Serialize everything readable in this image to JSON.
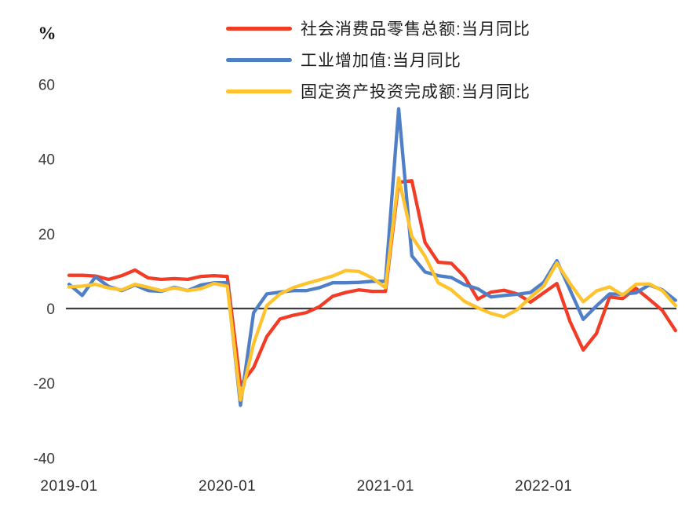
{
  "unit_label": "%",
  "chart_data": {
    "type": "line",
    "title": "",
    "xlabel": "",
    "ylabel": "%",
    "ylim": [
      -40,
      60
    ],
    "y_ticks": [
      60,
      40,
      20,
      0,
      -20,
      -40
    ],
    "x_axis_tick_labels": [
      "2019-01",
      "2020-01",
      "2021-01",
      "2022-01"
    ],
    "grid": "off",
    "legend_position": "top-center",
    "zero_line_color": "#3f3f3f",
    "x": [
      "2019-01",
      "2019-02",
      "2019-03",
      "2019-04",
      "2019-05",
      "2019-06",
      "2019-07",
      "2019-08",
      "2019-09",
      "2019-10",
      "2019-11",
      "2019-12",
      "2020-01",
      "2020-02",
      "2020-03",
      "2020-04",
      "2020-05",
      "2020-06",
      "2020-07",
      "2020-08",
      "2020-09",
      "2020-10",
      "2020-11",
      "2020-12",
      "2021-01",
      "2021-02",
      "2021-03",
      "2021-04",
      "2021-05",
      "2021-06",
      "2021-07",
      "2021-08",
      "2021-09",
      "2021-10",
      "2021-11",
      "2021-12",
      "2022-01",
      "2022-02",
      "2022-03",
      "2022-04",
      "2022-05",
      "2022-06",
      "2022-07",
      "2022-08",
      "2022-09",
      "2022-10",
      "2022-11"
    ],
    "series": [
      {
        "name": "社会消费品零售总额:当月同比",
        "color": "#F23C26",
        "values": [
          8.9,
          8.9,
          8.7,
          7.8,
          8.8,
          10.3,
          8.2,
          7.8,
          8.0,
          7.8,
          8.6,
          8.8,
          8.6,
          -20.5,
          -15.8,
          -7.5,
          -2.8,
          -1.8,
          -1.1,
          0.5,
          3.3,
          4.3,
          5.0,
          4.6,
          4.6,
          33.8,
          34.2,
          17.7,
          12.4,
          12.1,
          8.5,
          2.5,
          4.4,
          4.9,
          3.9,
          1.7,
          4.2,
          6.7,
          -3.5,
          -11.1,
          -6.7,
          3.1,
          2.7,
          5.4,
          2.5,
          -0.5,
          -5.9
        ]
      },
      {
        "name": "工业增加值:当月同比",
        "color": "#4F7FC6",
        "values": [
          6.5,
          3.5,
          8.5,
          5.9,
          4.8,
          6.3,
          4.8,
          4.6,
          5.7,
          4.8,
          6.3,
          6.9,
          6.9,
          -25.9,
          -1.1,
          3.9,
          4.4,
          4.8,
          4.8,
          5.6,
          6.9,
          6.9,
          7.0,
          7.3,
          7.3,
          53.5,
          14.1,
          9.8,
          8.8,
          8.3,
          6.4,
          5.3,
          3.1,
          3.5,
          3.8,
          4.3,
          7.0,
          12.8,
          5.0,
          -2.9,
          0.7,
          3.9,
          3.8,
          4.2,
          6.3,
          5.0,
          2.2
        ]
      },
      {
        "name": "固定资产投资完成额:当月同比",
        "color": "#FEC32D",
        "values": [
          5.8,
          6.0,
          6.5,
          5.5,
          5.0,
          6.5,
          5.7,
          4.8,
          5.5,
          4.8,
          5.3,
          6.7,
          6.0,
          -24.5,
          -9.4,
          0.8,
          3.9,
          5.6,
          6.7,
          7.7,
          8.7,
          10.2,
          9.9,
          8.2,
          5.6,
          35.0,
          19.3,
          14.0,
          6.9,
          5.0,
          1.9,
          0.2,
          -1.3,
          -2.2,
          -0.3,
          3.0,
          6.0,
          12.2,
          6.7,
          1.8,
          4.7,
          5.8,
          3.6,
          6.5,
          6.6,
          4.8,
          0.8
        ]
      }
    ]
  }
}
